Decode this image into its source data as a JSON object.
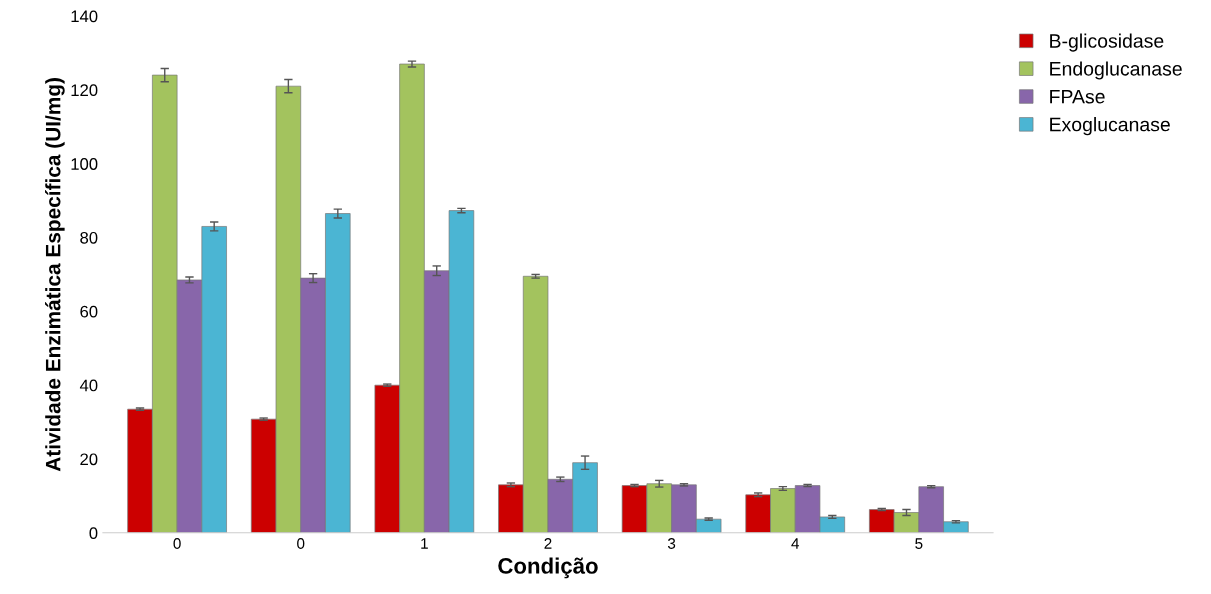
{
  "chart_data": {
    "type": "bar",
    "xlabel": "Condição",
    "ylabel": "Atividade Enzimática Específica (UI/mg)",
    "categories": [
      "0",
      "0",
      "1",
      "2",
      "3",
      "4",
      "5"
    ],
    "series": [
      {
        "name": "B-glicosidase",
        "color": "#cc0000",
        "values": [
          33.5,
          30.8,
          40,
          13,
          12.8,
          10.3,
          6.3
        ],
        "errors": [
          0.3,
          0.3,
          0.3,
          0.5,
          0.3,
          0.5,
          0.3
        ]
      },
      {
        "name": "Endoglucanase",
        "color": "#a3c35e",
        "values": [
          124,
          121,
          127,
          69.5,
          13.3,
          12,
          5.5
        ],
        "errors": [
          1.8,
          1.8,
          0.8,
          0.5,
          0.9,
          0.5,
          0.8
        ]
      },
      {
        "name": "FPAse",
        "color": "#8866aa",
        "values": [
          68.5,
          69,
          71,
          14.5,
          13,
          12.8,
          12.5
        ],
        "errors": [
          0.8,
          1.2,
          1.3,
          0.6,
          0.3,
          0.3,
          0.3
        ]
      },
      {
        "name": "Exoglucanase",
        "color": "#4bb5d3",
        "values": [
          83,
          86.5,
          87.3,
          19,
          3.7,
          4.3,
          3
        ],
        "errors": [
          1.2,
          1.2,
          0.6,
          1.8,
          0.3,
          0.4,
          0.3
        ]
      }
    ],
    "ylim": [
      0,
      140
    ],
    "yticks": [
      0,
      20,
      40,
      60,
      80,
      100,
      120,
      140
    ],
    "grid": false,
    "legend": "top right"
  }
}
